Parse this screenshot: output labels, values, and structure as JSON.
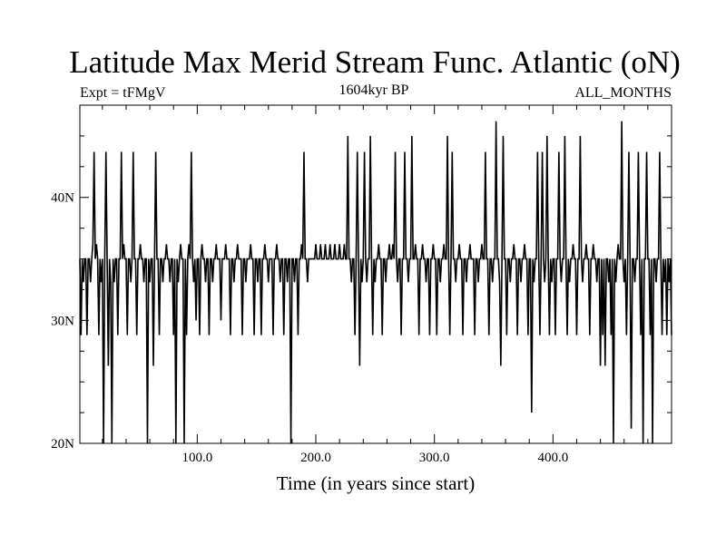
{
  "chart_data": {
    "type": "line",
    "title": "Latitude Max Merid Stream Func. Atlantic (oN)",
    "subtitle_left": "Expt = tFMgV",
    "subtitle_center": "1604kyr BP",
    "subtitle_right": "ALL_MONTHS",
    "xlabel": "Time (in years since start)",
    "ylabel": "",
    "xlim": [
      1,
      500
    ],
    "ylim": [
      20,
      47.5
    ],
    "xticks": [
      100,
      200,
      300,
      400
    ],
    "xtick_labels": [
      "100.0",
      "200.0",
      "300.0",
      "400.0"
    ],
    "yticks": [
      20,
      30,
      40
    ],
    "ytick_labels": [
      "20N",
      "30N",
      "40N"
    ],
    "grid": false,
    "legend": "none",
    "line_color": "#000000",
    "series": [
      {
        "baseline": 35,
        "events": [
          [
            2,
            28.8
          ],
          [
            4,
            33.1
          ],
          [
            7,
            28.8
          ],
          [
            10,
            33.1
          ],
          [
            12,
            36.2
          ],
          [
            13,
            43.7
          ],
          [
            15,
            36.2
          ],
          [
            17,
            28.8
          ],
          [
            19,
            33.1
          ],
          [
            21,
            20.0
          ],
          [
            23,
            43.7
          ],
          [
            25,
            26.3
          ],
          [
            27,
            33.1
          ],
          [
            28,
            20.0
          ],
          [
            30,
            33.1
          ],
          [
            33,
            28.8
          ],
          [
            36,
            43.7
          ],
          [
            38,
            36.2
          ],
          [
            41,
            28.8
          ],
          [
            44,
            33.1
          ],
          [
            46,
            43.7
          ],
          [
            49,
            28.8
          ],
          [
            52,
            36.2
          ],
          [
            55,
            33.1
          ],
          [
            58,
            20.0
          ],
          [
            60,
            33.1
          ],
          [
            63,
            26.3
          ],
          [
            65,
            43.7
          ],
          [
            68,
            28.8
          ],
          [
            71,
            33.1
          ],
          [
            74,
            36.2
          ],
          [
            77,
            33.1
          ],
          [
            80,
            28.8
          ],
          [
            82,
            20.0
          ],
          [
            84,
            33.1
          ],
          [
            86,
            36.2
          ],
          [
            89,
            20.0
          ],
          [
            91,
            28.8
          ],
          [
            93,
            36.2
          ],
          [
            95,
            43.7
          ],
          [
            97,
            33.1
          ],
          [
            99,
            30.0
          ],
          [
            102,
            28.8
          ],
          [
            104,
            36.2
          ],
          [
            107,
            33.1
          ],
          [
            110,
            28.8
          ],
          [
            113,
            33.1
          ],
          [
            116,
            36.2
          ],
          [
            120,
            30.0
          ],
          [
            124,
            36.2
          ],
          [
            128,
            28.8
          ],
          [
            131,
            33.1
          ],
          [
            134,
            36.2
          ],
          [
            138,
            28.8
          ],
          [
            141,
            33.1
          ],
          [
            145,
            36.2
          ],
          [
            148,
            28.8
          ],
          [
            151,
            33.1
          ],
          [
            154,
            28.8
          ],
          [
            157,
            36.2
          ],
          [
            160,
            33.1
          ],
          [
            164,
            28.8
          ],
          [
            167,
            36.2
          ],
          [
            170,
            33.1
          ],
          [
            173,
            28.8
          ],
          [
            176,
            33.1
          ],
          [
            179,
            20.0
          ],
          [
            182,
            33.1
          ],
          [
            185,
            28.8
          ],
          [
            188,
            36.2
          ],
          [
            190,
            43.7
          ],
          [
            193,
            33.1
          ],
          [
            200,
            36.2
          ],
          [
            204,
            36.2
          ],
          [
            208,
            36.2
          ],
          [
            212,
            36.2
          ],
          [
            216,
            36.2
          ],
          [
            220,
            36.2
          ],
          [
            224,
            36.2
          ],
          [
            227,
            45.0
          ],
          [
            230,
            33.1
          ],
          [
            233,
            28.8
          ],
          [
            235,
            43.7
          ],
          [
            237,
            26.3
          ],
          [
            239,
            33.1
          ],
          [
            241,
            43.7
          ],
          [
            243,
            33.1
          ],
          [
            246,
            45.0
          ],
          [
            248,
            28.8
          ],
          [
            250,
            33.1
          ],
          [
            253,
            36.2
          ],
          [
            256,
            28.8
          ],
          [
            259,
            33.1
          ],
          [
            262,
            36.2
          ],
          [
            265,
            36.2
          ],
          [
            267,
            43.7
          ],
          [
            269,
            33.1
          ],
          [
            272,
            28.8
          ],
          [
            275,
            43.7
          ],
          [
            278,
            33.1
          ],
          [
            281,
            45.0
          ],
          [
            284,
            36.2
          ],
          [
            287,
            28.8
          ],
          [
            290,
            36.2
          ],
          [
            293,
            33.1
          ],
          [
            296,
            28.8
          ],
          [
            299,
            36.2
          ],
          [
            302,
            28.8
          ],
          [
            305,
            33.1
          ],
          [
            308,
            36.2
          ],
          [
            311,
            45.0
          ],
          [
            313,
            28.8
          ],
          [
            315,
            43.7
          ],
          [
            318,
            33.1
          ],
          [
            321,
            36.2
          ],
          [
            324,
            28.8
          ],
          [
            327,
            33.1
          ],
          [
            330,
            36.2
          ],
          [
            334,
            28.8
          ],
          [
            337,
            33.1
          ],
          [
            340,
            36.2
          ],
          [
            343,
            43.7
          ],
          [
            346,
            28.8
          ],
          [
            349,
            33.1
          ],
          [
            352,
            46.2
          ],
          [
            355,
            33.1
          ],
          [
            356,
            26.3
          ],
          [
            358,
            45.0
          ],
          [
            361,
            28.8
          ],
          [
            364,
            33.1
          ],
          [
            367,
            36.2
          ],
          [
            370,
            28.8
          ],
          [
            373,
            33.1
          ],
          [
            376,
            36.2
          ],
          [
            379,
            28.8
          ],
          [
            382,
            22.5
          ],
          [
            384,
            33.1
          ],
          [
            387,
            43.7
          ],
          [
            389,
            28.8
          ],
          [
            391,
            43.7
          ],
          [
            393,
            33.1
          ],
          [
            395,
            45.0
          ],
          [
            397,
            28.8
          ],
          [
            399,
            33.1
          ],
          [
            402,
            28.8
          ],
          [
            405,
            43.7
          ],
          [
            407,
            33.1
          ],
          [
            410,
            45.0
          ],
          [
            412,
            28.8
          ],
          [
            414,
            33.1
          ],
          [
            417,
            36.2
          ],
          [
            420,
            28.8
          ],
          [
            423,
            45.0
          ],
          [
            425,
            33.1
          ],
          [
            428,
            36.2
          ],
          [
            431,
            28.8
          ],
          [
            434,
            36.2
          ],
          [
            437,
            33.1
          ],
          [
            440,
            26.3
          ],
          [
            442,
            28.8
          ],
          [
            444,
            26.3
          ],
          [
            447,
            33.1
          ],
          [
            449,
            28.8
          ],
          [
            451,
            20.0
          ],
          [
            453,
            33.1
          ],
          [
            455,
            36.2
          ],
          [
            458,
            46.2
          ],
          [
            460,
            33.1
          ],
          [
            462,
            28.8
          ],
          [
            464,
            43.7
          ],
          [
            466,
            21.2
          ],
          [
            469,
            33.1
          ],
          [
            472,
            43.7
          ],
          [
            474,
            28.8
          ],
          [
            476,
            20.0
          ],
          [
            479,
            43.7
          ],
          [
            482,
            28.8
          ],
          [
            484,
            20.0
          ],
          [
            487,
            33.1
          ],
          [
            490,
            43.7
          ],
          [
            492,
            28.8
          ],
          [
            494,
            33.1
          ],
          [
            496,
            28.8
          ],
          [
            498,
            33.1
          ],
          [
            500,
            28.8
          ]
        ]
      }
    ]
  }
}
